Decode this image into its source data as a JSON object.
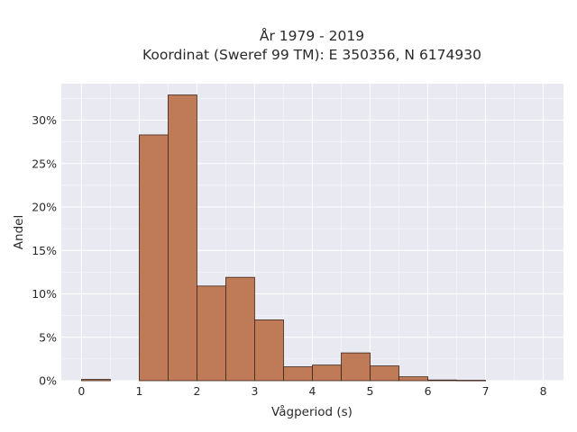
{
  "chart_data": {
    "type": "bar",
    "title": "År 1979 - 2019",
    "subtitle": "Koordinat (Sweref 99 TM): E 350356, N 6174930",
    "xlabel": "Vågperiod (s)",
    "ylabel": "Andel",
    "xlim": [
      -0.35,
      8.35
    ],
    "ylim": [
      0,
      34.2
    ],
    "x_ticks": [
      0,
      1,
      2,
      3,
      4,
      5,
      6,
      7,
      8
    ],
    "y_ticks": [
      0,
      5,
      10,
      15,
      20,
      25,
      30
    ],
    "y_tick_suffix": "%",
    "grid": true,
    "bin_width": 0.5,
    "bins": [
      {
        "x0": 0.0,
        "x1": 0.5,
        "value": 0.15
      },
      {
        "x0": 1.0,
        "x1": 1.5,
        "value": 28.3
      },
      {
        "x0": 1.5,
        "x1": 2.0,
        "value": 32.9
      },
      {
        "x0": 2.0,
        "x1": 2.5,
        "value": 10.9
      },
      {
        "x0": 2.5,
        "x1": 3.0,
        "value": 11.9
      },
      {
        "x0": 3.0,
        "x1": 3.5,
        "value": 7.0
      },
      {
        "x0": 3.5,
        "x1": 4.0,
        "value": 1.6
      },
      {
        "x0": 4.0,
        "x1": 4.5,
        "value": 1.8
      },
      {
        "x0": 4.5,
        "x1": 5.0,
        "value": 3.2
      },
      {
        "x0": 5.0,
        "x1": 5.5,
        "value": 1.7
      },
      {
        "x0": 5.5,
        "x1": 6.0,
        "value": 0.45
      },
      {
        "x0": 6.0,
        "x1": 6.5,
        "value": 0.08
      },
      {
        "x0": 6.5,
        "x1": 7.0,
        "value": 0.05
      }
    ],
    "colors": {
      "bar_fill": "#bf7b57",
      "bar_stroke": "#3d2418",
      "plot_bg": "#e9e9f1",
      "grid": "#ffffff"
    }
  }
}
